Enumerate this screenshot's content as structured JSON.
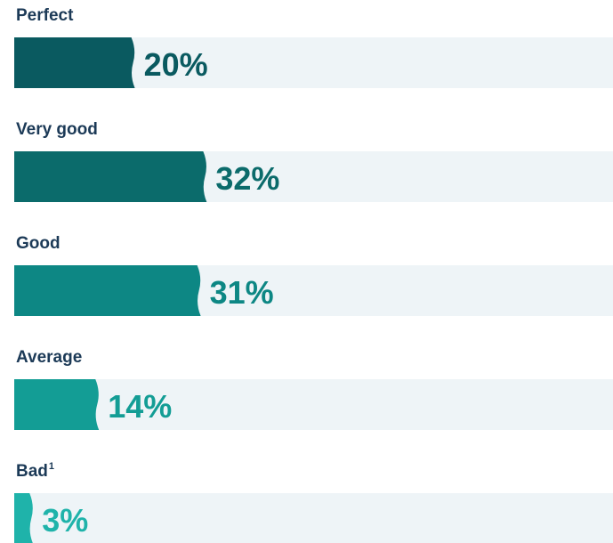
{
  "chart_data": {
    "type": "bar",
    "orientation": "horizontal",
    "categories": [
      "Perfect",
      "Very good",
      "Good",
      "Average",
      "Bad"
    ],
    "category_notes": [
      null,
      null,
      null,
      null,
      "1"
    ],
    "values": [
      20,
      32,
      31,
      14,
      3
    ],
    "value_labels": [
      "20%",
      "32%",
      "31%",
      "14%",
      "3%"
    ],
    "colors": [
      "#0a5a60",
      "#0b6b6b",
      "#0d8784",
      "#139d95",
      "#1fb3aa"
    ],
    "track_color": "#eef4f7",
    "xlim": [
      0,
      100
    ]
  }
}
